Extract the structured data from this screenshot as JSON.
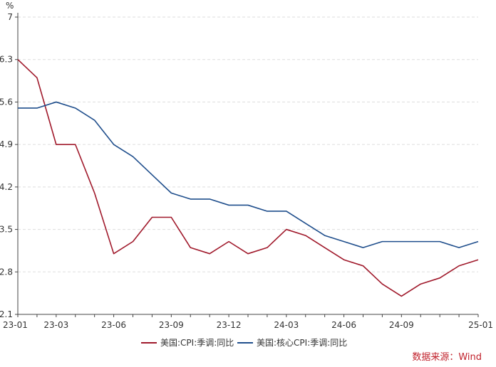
{
  "chart_data": {
    "type": "line",
    "y_unit": "%",
    "ylim": [
      2.1,
      7
    ],
    "y_ticks": [
      2.1,
      2.8,
      3.5,
      4.2,
      4.9,
      5.6,
      6.3,
      7
    ],
    "y_tick_labels": [
      "2.1",
      "2.8",
      "3.5",
      "4.2",
      "4.9",
      "5.6",
      "6.3",
      "7"
    ],
    "x": [
      "23-01",
      "23-02",
      "23-03",
      "23-04",
      "23-05",
      "23-06",
      "23-07",
      "23-08",
      "23-09",
      "23-10",
      "23-11",
      "23-12",
      "24-01",
      "24-02",
      "24-03",
      "24-04",
      "24-05",
      "24-06",
      "24-07",
      "24-08",
      "24-09",
      "24-10",
      "24-11",
      "24-12",
      "25-01"
    ],
    "x_tick_labels": [
      "23-01",
      "23-03",
      "23-06",
      "23-09",
      "23-12",
      "24-03",
      "24-06",
      "24-09",
      "25-01"
    ],
    "grid": "horizontal-dashed",
    "legend_position": "bottom",
    "series": [
      {
        "name": "美国:CPI:季调:同比",
        "color": "#a0192b",
        "values": [
          6.3,
          6.0,
          4.9,
          4.9,
          4.1,
          3.1,
          3.3,
          3.7,
          3.7,
          3.2,
          3.1,
          3.3,
          3.1,
          3.2,
          3.5,
          3.4,
          3.2,
          3.0,
          2.9,
          2.6,
          2.4,
          2.6,
          2.7,
          2.9,
          3.0
        ]
      },
      {
        "name": "美国:核心CPI:季调:同比",
        "color": "#1f4e8c",
        "values": [
          5.5,
          5.5,
          5.6,
          5.5,
          5.3,
          4.9,
          4.7,
          4.4,
          4.1,
          4.0,
          4.0,
          3.9,
          3.9,
          3.8,
          3.8,
          3.6,
          3.4,
          3.3,
          3.2,
          3.3,
          3.3,
          3.3,
          3.3,
          3.2,
          3.3
        ]
      }
    ],
    "source": "数据来源：Wind"
  }
}
